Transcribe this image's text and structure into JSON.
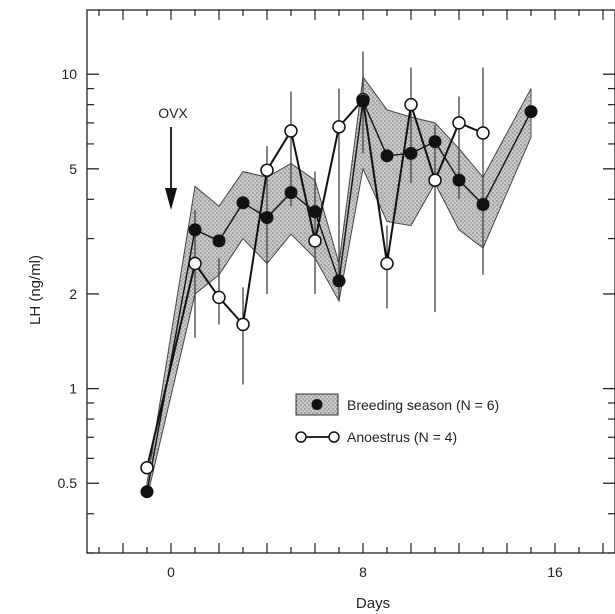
{
  "chart_data": {
    "type": "line",
    "xlabel": "Days",
    "ylabel": "LH (ng/ml)",
    "y_scale": "log",
    "xlim": [
      -3.5,
      18.5
    ],
    "ylim": [
      0.3,
      16
    ],
    "x_ticks": [
      0,
      8,
      16
    ],
    "y_ticks": [
      0.5,
      1,
      2,
      5,
      10
    ],
    "y_tick_labels": [
      "0.5",
      "1",
      "2",
      "5",
      "10"
    ],
    "annotation": {
      "text": "OVX",
      "x": 0
    },
    "legend": {
      "position": "center-right"
    },
    "series": [
      {
        "name": "Breeding season (N = 6)",
        "marker": "filled-circle",
        "band": "shaded-range",
        "x": [
          -1,
          1,
          2,
          3,
          4,
          5,
          6,
          7,
          8,
          9,
          10,
          11,
          12,
          13,
          15
        ],
        "y": [
          0.47,
          3.2,
          2.95,
          3.9,
          3.5,
          4.2,
          3.65,
          2.2,
          8.2,
          5.5,
          5.6,
          6.1,
          4.6,
          3.85,
          7.6
        ],
        "band_low": [
          0.45,
          2.0,
          2.3,
          3.0,
          2.5,
          3.1,
          2.6,
          1.9,
          5.0,
          3.4,
          3.3,
          4.5,
          3.2,
          2.8,
          6.3
        ],
        "band_high": [
          0.5,
          4.4,
          3.8,
          4.9,
          4.7,
          5.2,
          4.6,
          2.5,
          9.8,
          7.7,
          7.3,
          7.0,
          5.8,
          4.7,
          9.0
        ]
      },
      {
        "name": "Anoestrus (N = 4)",
        "marker": "open-circle",
        "x": [
          -1,
          1,
          2,
          3,
          4,
          5,
          6,
          7,
          8,
          9,
          10,
          11,
          12,
          13
        ],
        "y": [
          0.56,
          2.5,
          1.95,
          1.6,
          4.95,
          6.6,
          2.95,
          6.8,
          8.3,
          2.5,
          8.0,
          4.6,
          7.0,
          6.5
        ]
      }
    ]
  }
}
